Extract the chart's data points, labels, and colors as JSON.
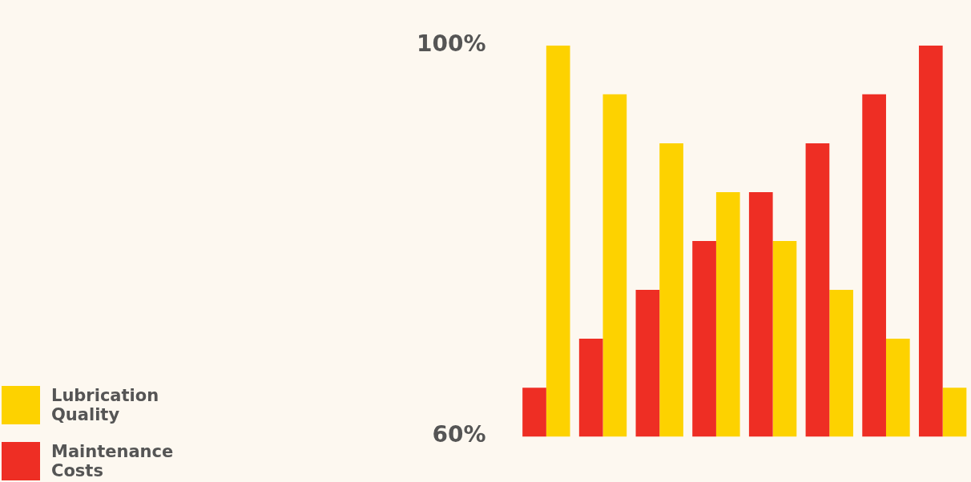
{
  "chart_data": {
    "type": "bar",
    "categories": [
      null,
      null,
      null,
      null,
      null,
      null,
      null,
      null
    ],
    "series": [
      {
        "name": "Maintenance Costs",
        "color": "#ee2e24",
        "values": [
          65,
          70,
          75,
          80,
          85,
          90,
          95,
          100
        ]
      },
      {
        "name": "Lubrication Quality",
        "color": "#fdd200",
        "values": [
          100,
          95,
          90,
          85,
          80,
          75,
          70,
          65
        ]
      }
    ],
    "ylim": [
      60,
      100
    ],
    "yticks": [
      {
        "value": 100,
        "label": "100%"
      },
      {
        "value": 60,
        "label": "60%"
      }
    ],
    "tick_labels": "y",
    "grid": false,
    "legend": "bottom left"
  }
}
